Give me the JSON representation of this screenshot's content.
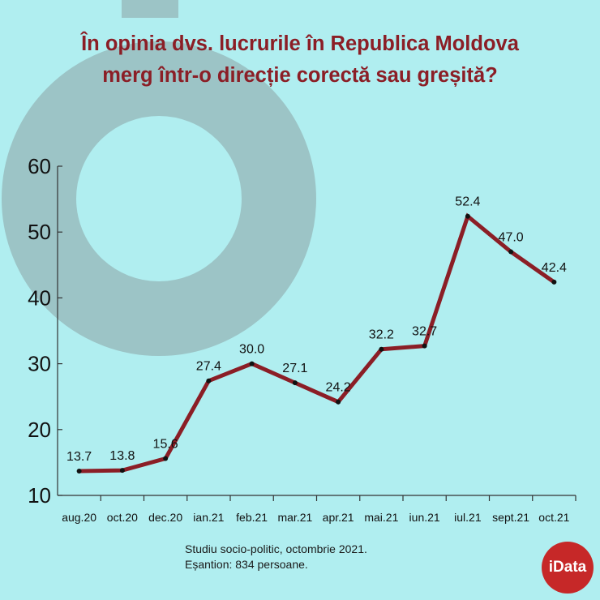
{
  "title_lines": [
    "În opinia dvs. lucrurile în Republica Moldova",
    "merg într-o direcție corectă sau greșită?"
  ],
  "chart_data": {
    "type": "line",
    "categories": [
      "aug.20",
      "oct.20",
      "dec.20",
      "ian.21",
      "feb.21",
      "mar.21",
      "apr.21",
      "mai.21",
      "iun.21",
      "iul.21",
      "sept.21",
      "oct.21"
    ],
    "values": [
      13.7,
      13.8,
      15.6,
      27.4,
      30.0,
      27.1,
      24.2,
      32.2,
      32.7,
      52.4,
      47.0,
      42.4
    ],
    "data_labels": [
      "13.7",
      "13.8",
      "15.6",
      "27.4",
      "30.0",
      "27.1",
      "24.2",
      "32.2",
      "32.7",
      "52.4",
      "47.0",
      "42.4"
    ],
    "yticks": [
      "10",
      "20",
      "30",
      "40",
      "50",
      "60"
    ],
    "ylim": [
      10,
      60
    ],
    "grid": false,
    "line_color": "#8b1e26"
  },
  "footer": {
    "line1": "Studiu socio-politic, octombrie 2021.",
    "line2": "Eșantion: 834 persoane."
  },
  "logo": {
    "text": "iData",
    "color": "#c62828"
  },
  "colors": {
    "background": "#b0eef0",
    "title": "#8b1e26",
    "decor": "#9cc4c6"
  }
}
